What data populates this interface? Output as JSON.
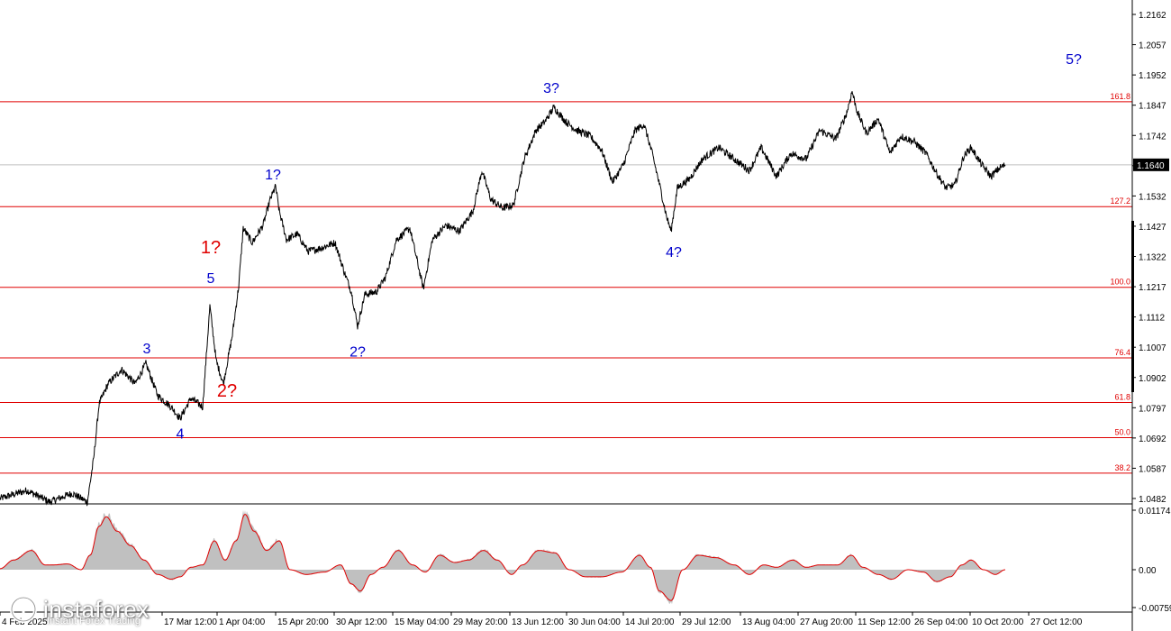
{
  "chart_data": {
    "type": "line",
    "price_axis": {
      "min": 1.0482,
      "max": 1.2162,
      "ticks": [
        "1.2162",
        "1.2057",
        "1.1952",
        "1.1847",
        "1.1742",
        "1.1637",
        "1.1532",
        "1.1427",
        "1.1322",
        "1.1217",
        "1.1112",
        "1.1007",
        "1.0902",
        "1.0797",
        "1.0692",
        "1.0587",
        "1.0482"
      ],
      "current": "1.1640"
    },
    "time_labels": [
      {
        "label": "4 Feb 2025",
        "t": 0
      },
      {
        "label": "17 Mar 12:00",
        "t": 180
      },
      {
        "label": "1 Apr 04:00",
        "t": 241
      },
      {
        "label": "15 Apr 20:00",
        "t": 306
      },
      {
        "label": "30 Apr 12:00",
        "t": 371
      },
      {
        "label": "15 May 04:00",
        "t": 436
      },
      {
        "label": "29 May 20:00",
        "t": 501
      },
      {
        "label": "13 Jun 12:00",
        "t": 566
      },
      {
        "label": "30 Jun 04:00",
        "t": 629
      },
      {
        "label": "14 Jul 20:00",
        "t": 692
      },
      {
        "label": "29 Jul 12:00",
        "t": 755
      },
      {
        "label": "13 Aug 04:00",
        "t": 822
      },
      {
        "label": "27 Aug 20:00",
        "t": 886
      },
      {
        "label": "11 Sep 12:00",
        "t": 950
      },
      {
        "label": "26 Sep 04:00",
        "t": 1013
      },
      {
        "label": "10 Oct 20:00",
        "t": 1077
      },
      {
        "label": "27 Oct 12:00",
        "t": 1142
      }
    ],
    "fib_levels": [
      {
        "label": "161.8",
        "value": 1.1859
      },
      {
        "label": "127.2",
        "value": 1.1495
      },
      {
        "label": "100.0",
        "value": 1.1215
      },
      {
        "label": "76.4",
        "value": 1.097
      },
      {
        "label": "61.8",
        "value": 1.0815
      },
      {
        "label": "50.0",
        "value": 1.0693
      },
      {
        "label": "38.2",
        "value": 1.057
      }
    ],
    "price_anchors": [
      [
        0,
        1.0482
      ],
      [
        30,
        1.051
      ],
      [
        55,
        1.047
      ],
      [
        80,
        1.05
      ],
      [
        97,
        1.047
      ],
      [
        104,
        1.062
      ],
      [
        110,
        1.081
      ],
      [
        120,
        1.088
      ],
      [
        135,
        1.093
      ],
      [
        150,
        1.088
      ],
      [
        162,
        1.095
      ],
      [
        175,
        1.084
      ],
      [
        190,
        1.08
      ],
      [
        200,
        1.076
      ],
      [
        212,
        1.083
      ],
      [
        225,
        1.08
      ],
      [
        233,
        1.115
      ],
      [
        240,
        1.096
      ],
      [
        248,
        1.088
      ],
      [
        258,
        1.105
      ],
      [
        265,
        1.122
      ],
      [
        270,
        1.142
      ],
      [
        280,
        1.137
      ],
      [
        292,
        1.143
      ],
      [
        300,
        1.152
      ],
      [
        306,
        1.1565
      ],
      [
        310,
        1.148
      ],
      [
        318,
        1.138
      ],
      [
        330,
        1.14
      ],
      [
        342,
        1.134
      ],
      [
        355,
        1.135
      ],
      [
        372,
        1.137
      ],
      [
        382,
        1.127
      ],
      [
        390,
        1.12
      ],
      [
        397,
        1.108
      ],
      [
        405,
        1.119
      ],
      [
        418,
        1.12
      ],
      [
        428,
        1.125
      ],
      [
        440,
        1.138
      ],
      [
        455,
        1.142
      ],
      [
        470,
        1.121
      ],
      [
        480,
        1.138
      ],
      [
        495,
        1.143
      ],
      [
        510,
        1.141
      ],
      [
        525,
        1.148
      ],
      [
        535,
        1.162
      ],
      [
        545,
        1.152
      ],
      [
        558,
        1.149
      ],
      [
        570,
        1.15
      ],
      [
        582,
        1.166
      ],
      [
        595,
        1.176
      ],
      [
        605,
        1.179
      ],
      [
        615,
        1.184
      ],
      [
        628,
        1.179
      ],
      [
        640,
        1.176
      ],
      [
        655,
        1.174
      ],
      [
        668,
        1.169
      ],
      [
        680,
        1.158
      ],
      [
        692,
        1.164
      ],
      [
        705,
        1.176
      ],
      [
        715,
        1.178
      ],
      [
        724,
        1.168
      ],
      [
        733,
        1.156
      ],
      [
        740,
        1.146
      ],
      [
        745,
        1.141
      ],
      [
        752,
        1.156
      ],
      [
        765,
        1.159
      ],
      [
        780,
        1.166
      ],
      [
        798,
        1.17
      ],
      [
        815,
        1.166
      ],
      [
        832,
        1.162
      ],
      [
        845,
        1.17
      ],
      [
        862,
        1.16
      ],
      [
        878,
        1.168
      ],
      [
        895,
        1.166
      ],
      [
        910,
        1.176
      ],
      [
        928,
        1.173
      ],
      [
        940,
        1.182
      ],
      [
        946,
        1.1895
      ],
      [
        952,
        1.182
      ],
      [
        962,
        1.175
      ],
      [
        975,
        1.18
      ],
      [
        988,
        1.168
      ],
      [
        1000,
        1.174
      ],
      [
        1015,
        1.172
      ],
      [
        1028,
        1.168
      ],
      [
        1040,
        1.161
      ],
      [
        1050,
        1.156
      ],
      [
        1060,
        1.157
      ],
      [
        1070,
        1.167
      ],
      [
        1078,
        1.17
      ],
      [
        1090,
        1.164
      ],
      [
        1100,
        1.16
      ],
      [
        1110,
        1.163
      ],
      [
        1116,
        1.164
      ]
    ],
    "wave_labels": [
      {
        "text": "3",
        "t": 163,
        "price": 1.0985,
        "color": "#0000cc",
        "size": 16
      },
      {
        "text": "4",
        "t": 200,
        "price": 1.069,
        "color": "#0000cc",
        "size": 16
      },
      {
        "text": "5",
        "t": 234,
        "price": 1.123,
        "color": "#0000cc",
        "size": 16
      },
      {
        "text": "1?",
        "t": 234,
        "price": 1.1255,
        "color": "#e00000",
        "size": 20,
        "dy": -25
      },
      {
        "text": "2?",
        "t": 252,
        "price": 1.0835,
        "color": "#e00000",
        "size": 20
      },
      {
        "text": "1?",
        "t": 303,
        "price": 1.159,
        "color": "#0000cc",
        "size": 16
      },
      {
        "text": "2?",
        "t": 397,
        "price": 1.0975,
        "color": "#0000cc",
        "size": 16
      },
      {
        "text": "3?",
        "t": 612,
        "price": 1.189,
        "color": "#0000cc",
        "size": 16
      },
      {
        "text": "4?",
        "t": 748,
        "price": 1.132,
        "color": "#0000cc",
        "size": 16
      },
      {
        "text": "5?",
        "t": 1192,
        "price": 1.199,
        "color": "#0000cc",
        "size": 16
      }
    ],
    "oscillator": {
      "ticks": [
        "0.01174",
        "0.00",
        "-0.00759"
      ],
      "max": 0.01174,
      "min": -0.00759,
      "anchors": [
        [
          0,
          0.0002
        ],
        [
          15,
          0.002
        ],
        [
          35,
          0.004
        ],
        [
          50,
          0.001
        ],
        [
          60,
          0.001
        ],
        [
          75,
          0.0012
        ],
        [
          90,
          0.0
        ],
        [
          100,
          0.003
        ],
        [
          110,
          0.009
        ],
        [
          118,
          0.011
        ],
        [
          130,
          0.008
        ],
        [
          145,
          0.005
        ],
        [
          160,
          0.002
        ],
        [
          175,
          -0.001
        ],
        [
          190,
          -0.002
        ],
        [
          200,
          -0.0015
        ],
        [
          212,
          0.0005
        ],
        [
          225,
          0.001
        ],
        [
          238,
          0.006
        ],
        [
          250,
          0.002
        ],
        [
          262,
          0.006
        ],
        [
          272,
          0.0115
        ],
        [
          282,
          0.008
        ],
        [
          296,
          0.004
        ],
        [
          310,
          0.006
        ],
        [
          322,
          0.0
        ],
        [
          340,
          -0.001
        ],
        [
          360,
          -0.0005
        ],
        [
          378,
          0.001
        ],
        [
          390,
          -0.003
        ],
        [
          400,
          -0.0045
        ],
        [
          412,
          -0.001
        ],
        [
          425,
          0.0005
        ],
        [
          442,
          0.004
        ],
        [
          458,
          0.001
        ],
        [
          472,
          -0.0005
        ],
        [
          488,
          0.003
        ],
        [
          505,
          0.0015
        ],
        [
          520,
          0.002
        ],
        [
          537,
          0.004
        ],
        [
          552,
          0.002
        ],
        [
          568,
          -0.001
        ],
        [
          580,
          0.001
        ],
        [
          598,
          0.004
        ],
        [
          616,
          0.0035
        ],
        [
          632,
          0.0
        ],
        [
          650,
          -0.0015
        ],
        [
          668,
          -0.0015
        ],
        [
          690,
          -0.0005
        ],
        [
          710,
          0.003
        ],
        [
          722,
          0.0005
        ],
        [
          732,
          -0.0045
        ],
        [
          745,
          -0.0065
        ],
        [
          758,
          0.0
        ],
        [
          775,
          0.003
        ],
        [
          795,
          0.0025
        ],
        [
          815,
          0.001
        ],
        [
          832,
          -0.001
        ],
        [
          848,
          0.001
        ],
        [
          862,
          0.0005
        ],
        [
          880,
          0.002
        ],
        [
          895,
          0.0005
        ],
        [
          910,
          0.001
        ],
        [
          930,
          0.001
        ],
        [
          945,
          0.003
        ],
        [
          958,
          0.0005
        ],
        [
          975,
          -0.001
        ],
        [
          990,
          -0.002
        ],
        [
          1008,
          0.0
        ],
        [
          1025,
          -0.0005
        ],
        [
          1040,
          -0.0025
        ],
        [
          1055,
          -0.0015
        ],
        [
          1068,
          0.001
        ],
        [
          1078,
          0.002
        ],
        [
          1092,
          0.0
        ],
        [
          1105,
          -0.001
        ],
        [
          1116,
          0.0
        ]
      ]
    }
  },
  "branding": {
    "logo_text": "instaforex",
    "logo_sub": "Instant Forex Trading"
  }
}
